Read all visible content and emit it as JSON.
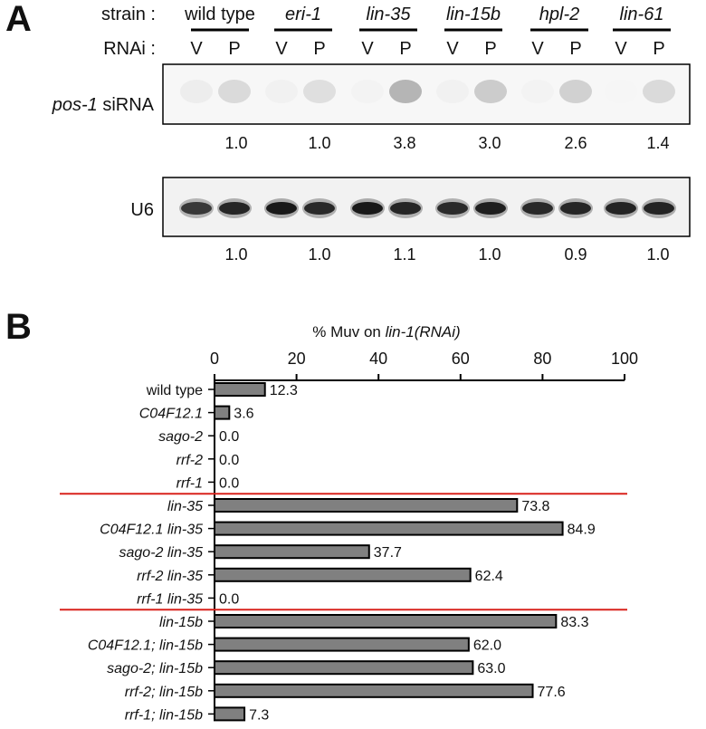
{
  "panel_a": {
    "letter": "A",
    "strain_label": "strain :",
    "rnai_label": "RNAi :",
    "strains": [
      "wild type",
      "eri-1",
      "lin-35",
      "lin-15b",
      "hpl-2",
      "lin-61"
    ],
    "rnai_conditions": [
      "V",
      "P"
    ],
    "blot_top_label_italic": "pos-1",
    "blot_top_label_rest": " siRNA",
    "blot_bottom_label": "U6",
    "sirna_quant": [
      "1.0",
      "1.0",
      "3.8",
      "3.0",
      "2.6",
      "1.4"
    ],
    "u6_quant": [
      "1.0",
      "1.0",
      "1.1",
      "1.0",
      "0.9",
      "1.0"
    ],
    "sirna_band_darkness": [
      0.08,
      0.16,
      0.06,
      0.14,
      0.05,
      0.32,
      0.06,
      0.22,
      0.05,
      0.2,
      0.04,
      0.16
    ],
    "u6_band_darkness": [
      0.78,
      0.85,
      0.9,
      0.84,
      0.9,
      0.85,
      0.83,
      0.88,
      0.84,
      0.85,
      0.86,
      0.86
    ]
  },
  "chart_data": {
    "panel_letter": "B",
    "type": "bar",
    "orientation": "horizontal",
    "title_prefix": "% Muv on ",
    "title_italic": "lin-1(RNAi)",
    "xlim": [
      0,
      100
    ],
    "xticks": [
      0,
      20,
      40,
      60,
      80,
      100
    ],
    "categories": [
      "wild type",
      "C04F12.1",
      "sago-2",
      "rrf-2",
      "rrf-1",
      "lin-35",
      "C04F12.1 lin-35",
      "sago-2 lin-35",
      "rrf-2 lin-35",
      "rrf-1 lin-35",
      "lin-15b",
      "C04F12.1; lin-15b",
      "sago-2; lin-15b",
      "rrf-2; lin-15b",
      "rrf-1; lin-15b"
    ],
    "values": [
      12.3,
      3.6,
      0.0,
      0.0,
      0.0,
      73.8,
      84.9,
      37.7,
      62.4,
      0.0,
      83.3,
      62.0,
      63.0,
      77.6,
      7.3
    ],
    "value_labels": [
      "12.3",
      "3.6",
      "0.0",
      "0.0",
      "0.0",
      "73.8",
      "84.9",
      "37.7",
      "62.4",
      "0.0",
      "83.3",
      "62.0",
      "63.0",
      "77.6",
      "7.3"
    ],
    "italic_categories": [
      false,
      true,
      true,
      true,
      true,
      true,
      true,
      true,
      true,
      true,
      true,
      true,
      true,
      true,
      true
    ],
    "group_separators_after_index": [
      4,
      9
    ],
    "bar_color": "#808080",
    "bar_edge_color": "#000000",
    "separator_color": "#d9221c"
  }
}
